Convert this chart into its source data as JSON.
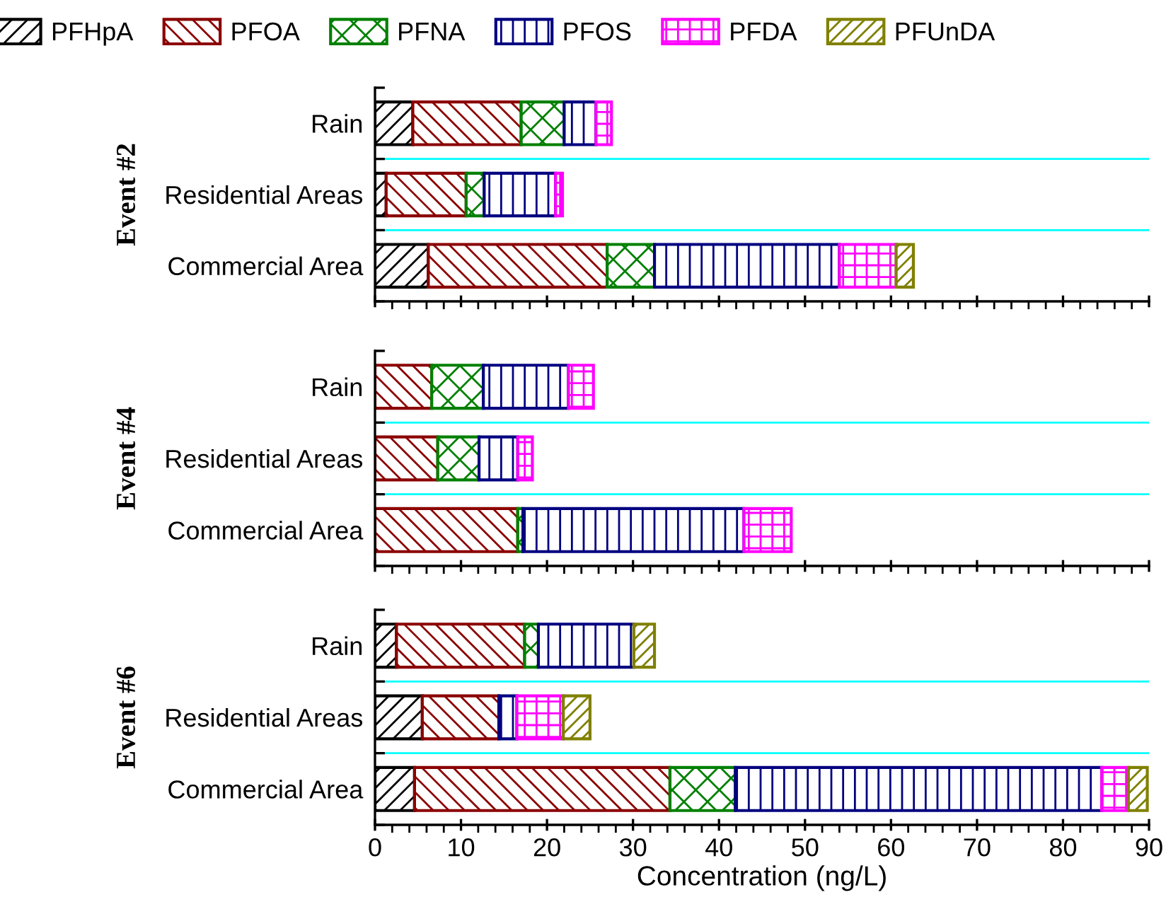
{
  "chart_data": [
    {
      "type": "bar",
      "orientation": "horizontal",
      "stacked": true,
      "ylabel": "Event #2",
      "categories": [
        "Rain",
        "Residential Areas",
        "Commercial Area"
      ],
      "xlim": [
        0,
        90
      ],
      "xticks": [
        0,
        10,
        20,
        30,
        40,
        50,
        60,
        70,
        80,
        90
      ],
      "tick_labels": "y",
      "grid": "y",
      "legend": "top",
      "series": [
        {
          "name": "PFHpA",
          "color": "#000000",
          "values": [
            4.4,
            1.3,
            6.2
          ]
        },
        {
          "name": "PFOA",
          "color": "#8b0000",
          "values": [
            12.6,
            9.3,
            20.8
          ]
        },
        {
          "name": "PFNA",
          "color": "#008000",
          "values": [
            5.0,
            2.1,
            5.5
          ]
        },
        {
          "name": "PFOS",
          "color": "#000080",
          "values": [
            3.7,
            8.3,
            21.5
          ]
        },
        {
          "name": "PFDA",
          "color": "#ff00ff",
          "values": [
            1.8,
            0.8,
            6.6
          ]
        },
        {
          "name": "PFUnDA",
          "color": "#808000",
          "values": [
            0,
            0,
            2.0
          ]
        }
      ]
    },
    {
      "type": "bar",
      "orientation": "horizontal",
      "stacked": true,
      "ylabel": "Event #4",
      "categories": [
        "Rain",
        "Residential Areas",
        "Commercial Area"
      ],
      "xlim": [
        0,
        90
      ],
      "xticks": [
        0,
        10,
        20,
        30,
        40,
        50,
        60,
        70,
        80,
        90
      ],
      "tick_labels": "y",
      "grid": "y",
      "series": [
        {
          "color": "#000000",
          "values": [
            0,
            0,
            0
          ]
        },
        {
          "color": "#8b0000",
          "values": [
            6.6,
            7.3,
            16.6
          ]
        },
        {
          "color": "#008000",
          "values": [
            6.0,
            4.8,
            0.6
          ]
        },
        {
          "color": "#000080",
          "values": [
            9.9,
            4.5,
            25.7
          ]
        },
        {
          "color": "#ff00ff",
          "values": [
            2.9,
            1.7,
            5.5
          ]
        },
        {
          "color": "#808000",
          "values": [
            0,
            0,
            0
          ]
        }
      ]
    },
    {
      "type": "bar",
      "orientation": "horizontal",
      "stacked": true,
      "ylabel": "Event #6",
      "xlabel": "Concentration (ng/L)",
      "categories": [
        "Rain",
        "Residential Areas",
        "Commercial Area"
      ],
      "xlim": [
        0,
        90
      ],
      "xticks": [
        0,
        10,
        20,
        30,
        40,
        50,
        60,
        70,
        80,
        90
      ],
      "grid": "y",
      "series": [
        {
          "color": "#000000",
          "values": [
            2.5,
            5.5,
            4.6
          ]
        },
        {
          "color": "#8b0000",
          "values": [
            14.9,
            8.9,
            29.7
          ]
        },
        {
          "color": "#008000",
          "values": [
            1.6,
            0,
            7.6
          ]
        },
        {
          "color": "#000080",
          "values": [
            11.1,
            2.1,
            42.6
          ]
        },
        {
          "color": "#ff00ff",
          "values": [
            0,
            5.4,
            3.1
          ]
        },
        {
          "color": "#808000",
          "values": [
            2.4,
            3.1,
            2.2
          ]
        }
      ]
    }
  ]
}
